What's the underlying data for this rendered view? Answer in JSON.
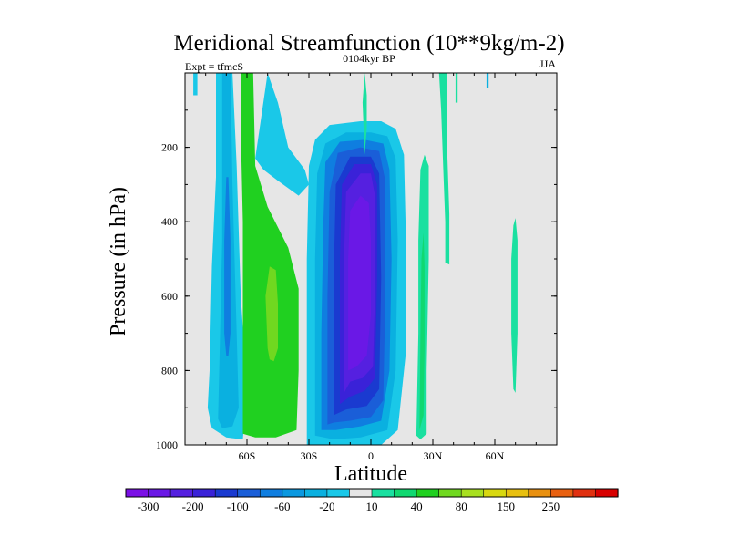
{
  "chart_data": {
    "type": "heatmap",
    "title": "Meridional Streamfunction (10**9kg/m-2)",
    "subtitle_left": "Expt = tfmcS",
    "subtitle_center": "0104kyr BP",
    "subtitle_right": "JJA",
    "xlabel": "Latitude",
    "ylabel": "Pressure (in hPa)",
    "xlim": [
      -90,
      90
    ],
    "ylim": [
      1000,
      0
    ],
    "y_reversed": true,
    "x_ticks": [
      {
        "value": -60,
        "label": "60S"
      },
      {
        "value": -30,
        "label": "30S"
      },
      {
        "value": 0,
        "label": "0"
      },
      {
        "value": 30,
        "label": "30N"
      },
      {
        "value": 60,
        "label": "60N"
      }
    ],
    "y_ticks": [
      {
        "value": 200,
        "label": "200"
      },
      {
        "value": 400,
        "label": "400"
      },
      {
        "value": 600,
        "label": "600"
      },
      {
        "value": 800,
        "label": "800"
      },
      {
        "value": 1000,
        "label": "1000"
      }
    ],
    "background_color": "#e6e6e6",
    "colorbar": {
      "bins": [
        {
          "color": "#7b10e6",
          "label": "-300"
        },
        {
          "color": "#6a18e6",
          "label": ""
        },
        {
          "color": "#5520e0",
          "label": "-200"
        },
        {
          "color": "#3a22d8",
          "label": ""
        },
        {
          "color": "#1a3ad0",
          "label": "-100"
        },
        {
          "color": "#1a5ed8",
          "label": ""
        },
        {
          "color": "#0f7ee0",
          "label": "-60"
        },
        {
          "color": "#0a98e0",
          "label": ""
        },
        {
          "color": "#0ab0e0",
          "label": "-20"
        },
        {
          "color": "#1ac8e8",
          "label": ""
        },
        {
          "color": "#e6e6e6",
          "label": "10"
        },
        {
          "color": "#1ae0a0",
          "label": ""
        },
        {
          "color": "#10d870",
          "label": "40"
        },
        {
          "color": "#20d020",
          "label": ""
        },
        {
          "color": "#70d820",
          "label": "80"
        },
        {
          "color": "#a8e020",
          "label": ""
        },
        {
          "color": "#d8d810",
          "label": "150"
        },
        {
          "color": "#e8c010",
          "label": ""
        },
        {
          "color": "#e89010",
          "label": "250"
        },
        {
          "color": "#e86010",
          "label": ""
        },
        {
          "color": "#e03010",
          "label": ""
        },
        {
          "color": "#d80000",
          "label": ""
        }
      ]
    },
    "contour_regions": [
      {
        "name": "sh-outer-cell",
        "fill": "#1ac8e8",
        "points": [
          [
            -78,
            790
          ],
          [
            -77,
            520
          ],
          [
            -75,
            280
          ],
          [
            -75,
            0
          ],
          [
            -67,
            0
          ],
          [
            -65,
            250
          ],
          [
            -63,
            600
          ],
          [
            -60,
            850
          ],
          [
            -62,
            985
          ],
          [
            -70,
            980
          ],
          [
            -77,
            955
          ],
          [
            -79,
            900
          ]
        ]
      },
      {
        "name": "sh-outer-cell-core",
        "fill": "#0ab0e0",
        "points": [
          [
            -74,
            930
          ],
          [
            -73,
            700
          ],
          [
            -72,
            450
          ],
          [
            -72,
            200
          ],
          [
            -72,
            0
          ],
          [
            -68,
            0
          ],
          [
            -67,
            300
          ],
          [
            -65,
            700
          ],
          [
            -64,
            900
          ],
          [
            -67,
            950
          ],
          [
            -72,
            955
          ]
        ]
      },
      {
        "name": "sh-outer-cell-inner",
        "fill": "#0f7ee0",
        "points": [
          [
            -71,
            700
          ],
          [
            -71,
            450
          ],
          [
            -70,
            280
          ],
          [
            -69,
            280
          ],
          [
            -68,
            450
          ],
          [
            -68,
            700
          ],
          [
            -69,
            760
          ],
          [
            -70,
            760
          ]
        ]
      },
      {
        "name": "sh-ferrel-cell",
        "fill": "#20d020",
        "points": [
          [
            -62,
            970
          ],
          [
            -62,
            700
          ],
          [
            -62,
            400
          ],
          [
            -63,
            150
          ],
          [
            -63,
            0
          ],
          [
            -57,
            0
          ],
          [
            -56,
            250
          ],
          [
            -50,
            360
          ],
          [
            -40,
            470
          ],
          [
            -35,
            580
          ],
          [
            -35,
            800
          ],
          [
            -36,
            960
          ],
          [
            -46,
            980
          ],
          [
            -56,
            980
          ]
        ]
      },
      {
        "name": "sh-ferrel-cell-core",
        "fill": "#70d820",
        "points": [
          [
            -50,
            740
          ],
          [
            -51,
            600
          ],
          [
            -49,
            520
          ],
          [
            -46,
            530
          ],
          [
            -45,
            620
          ],
          [
            -45,
            740
          ],
          [
            -47,
            775
          ],
          [
            -49,
            770
          ]
        ]
      },
      {
        "name": "sh-polar-band",
        "fill": "#1ac8e8",
        "points": [
          [
            -50,
            0
          ],
          [
            -45,
            80
          ],
          [
            -40,
            200
          ],
          [
            -32,
            260
          ],
          [
            -30,
            300
          ],
          [
            -35,
            330
          ],
          [
            -45,
            290
          ],
          [
            -52,
            260
          ],
          [
            -56,
            230
          ]
        ]
      },
      {
        "name": "hadley-cell-outer",
        "fill": "#1ac8e8",
        "points": [
          [
            -31,
            1000
          ],
          [
            -31,
            800
          ],
          [
            -31,
            500
          ],
          [
            -30,
            250
          ],
          [
            -27,
            180
          ],
          [
            -20,
            140
          ],
          [
            -5,
            130
          ],
          [
            5,
            130
          ],
          [
            12,
            150
          ],
          [
            16,
            220
          ],
          [
            17,
            450
          ],
          [
            17,
            750
          ],
          [
            13,
            960
          ],
          [
            5,
            1000
          ],
          [
            -10,
            1000
          ]
        ]
      },
      {
        "name": "hadley-cell-1",
        "fill": "#0ab0e0",
        "points": [
          [
            -27,
            975
          ],
          [
            -27,
            750
          ],
          [
            -27,
            500
          ],
          [
            -26,
            270
          ],
          [
            -22,
            190
          ],
          [
            -12,
            160
          ],
          [
            0,
            160
          ],
          [
            8,
            170
          ],
          [
            12,
            230
          ],
          [
            13,
            450
          ],
          [
            12,
            800
          ],
          [
            8,
            960
          ],
          [
            -5,
            980
          ],
          [
            -18,
            985
          ]
        ]
      },
      {
        "name": "hadley-cell-2",
        "fill": "#0f7ee0",
        "points": [
          [
            -24,
            960
          ],
          [
            -24,
            700
          ],
          [
            -23,
            400
          ],
          [
            -22,
            240
          ],
          [
            -15,
            185
          ],
          [
            -3,
            180
          ],
          [
            6,
            190
          ],
          [
            9,
            260
          ],
          [
            10,
            500
          ],
          [
            9,
            800
          ],
          [
            5,
            935
          ],
          [
            -5,
            950
          ],
          [
            -17,
            960
          ]
        ]
      },
      {
        "name": "hadley-cell-3",
        "fill": "#1a5ed8",
        "points": [
          [
            -21,
            945
          ],
          [
            -21,
            600
          ],
          [
            -20,
            320
          ],
          [
            -16,
            215
          ],
          [
            -5,
            200
          ],
          [
            4,
            210
          ],
          [
            7,
            290
          ],
          [
            7,
            600
          ],
          [
            6,
            880
          ],
          [
            0,
            925
          ],
          [
            -10,
            935
          ],
          [
            -18,
            940
          ]
        ]
      },
      {
        "name": "hadley-cell-4",
        "fill": "#1a3ad0",
        "points": [
          [
            -18,
            920
          ],
          [
            -18,
            550
          ],
          [
            -17,
            300
          ],
          [
            -10,
            225
          ],
          [
            0,
            225
          ],
          [
            4,
            270
          ],
          [
            5,
            550
          ],
          [
            4,
            850
          ],
          [
            -2,
            895
          ],
          [
            -12,
            905
          ]
        ]
      },
      {
        "name": "hadley-cell-5",
        "fill": "#3a22d8",
        "points": [
          [
            -15,
            890
          ],
          [
            -15,
            500
          ],
          [
            -14,
            300
          ],
          [
            -8,
            245
          ],
          [
            0,
            245
          ],
          [
            3,
            300
          ],
          [
            3,
            560
          ],
          [
            2,
            820
          ],
          [
            -3,
            855
          ],
          [
            -10,
            870
          ]
        ]
      },
      {
        "name": "hadley-cell-6",
        "fill": "#5520e0",
        "points": [
          [
            -13,
            860
          ],
          [
            -13,
            500
          ],
          [
            -12,
            320
          ],
          [
            -5,
            270
          ],
          [
            0,
            270
          ],
          [
            2,
            330
          ],
          [
            2,
            600
          ],
          [
            1,
            790
          ],
          [
            -4,
            820
          ],
          [
            -10,
            830
          ]
        ]
      },
      {
        "name": "hadley-cell-core",
        "fill": "#6a18e6",
        "points": [
          [
            -11,
            800
          ],
          [
            -11,
            500
          ],
          [
            -10,
            370
          ],
          [
            -5,
            330
          ],
          [
            -1,
            350
          ],
          [
            0,
            450
          ],
          [
            0,
            650
          ],
          [
            -2,
            760
          ],
          [
            -7,
            790
          ]
        ]
      },
      {
        "name": "equatorial-narrow-cell",
        "fill": "#1ae0a0",
        "points": [
          [
            -3,
            0
          ],
          [
            -2,
            60
          ],
          [
            -2,
            150
          ],
          [
            -3,
            220
          ],
          [
            -4,
            80
          ]
        ]
      },
      {
        "name": "nh-subtropical-band",
        "fill": "#1ae0a0",
        "points": [
          [
            22,
            975
          ],
          [
            23,
            700
          ],
          [
            23,
            450
          ],
          [
            24,
            260
          ],
          [
            26,
            220
          ],
          [
            28,
            250
          ],
          [
            28,
            500
          ],
          [
            27,
            800
          ],
          [
            27,
            970
          ],
          [
            24,
            985
          ]
        ]
      },
      {
        "name": "nh-subtropical-core",
        "fill": "#10d870",
        "points": [
          [
            23.5,
            960
          ],
          [
            24,
            700
          ],
          [
            24.5,
            500
          ],
          [
            25.5,
            430
          ],
          [
            26,
            520
          ],
          [
            26,
            750
          ],
          [
            25.5,
            920
          ]
        ]
      },
      {
        "name": "nh-upper-band",
        "fill": "#1ae0a0",
        "points": [
          [
            33,
            0
          ],
          [
            34,
            100
          ],
          [
            35,
            250
          ],
          [
            36,
            400
          ],
          [
            36,
            510
          ],
          [
            38,
            515
          ],
          [
            38,
            380
          ],
          [
            37,
            220
          ],
          [
            37,
            0
          ]
        ]
      },
      {
        "name": "nh-upper-band-2",
        "fill": "#1ae0a0",
        "points": [
          [
            41,
            0
          ],
          [
            41,
            80
          ],
          [
            42,
            80
          ],
          [
            42,
            0
          ]
        ]
      },
      {
        "name": "nh-midlat-band",
        "fill": "#1ae0a0",
        "points": [
          [
            69,
            410
          ],
          [
            68,
            500
          ],
          [
            68,
            700
          ],
          [
            69,
            850
          ],
          [
            70,
            860
          ],
          [
            71,
            700
          ],
          [
            71,
            450
          ],
          [
            70,
            390
          ]
        ]
      },
      {
        "name": "upper-left-sliver",
        "fill": "#1ac8e8",
        "points": [
          [
            -86,
            0
          ],
          [
            -84,
            0
          ],
          [
            -84,
            60
          ],
          [
            -86,
            60
          ]
        ]
      },
      {
        "name": "upper-nh-dot",
        "fill": "#0ab0e0",
        "points": [
          [
            56,
            0
          ],
          [
            57,
            0
          ],
          [
            57,
            40
          ],
          [
            56,
            40
          ]
        ]
      }
    ]
  }
}
